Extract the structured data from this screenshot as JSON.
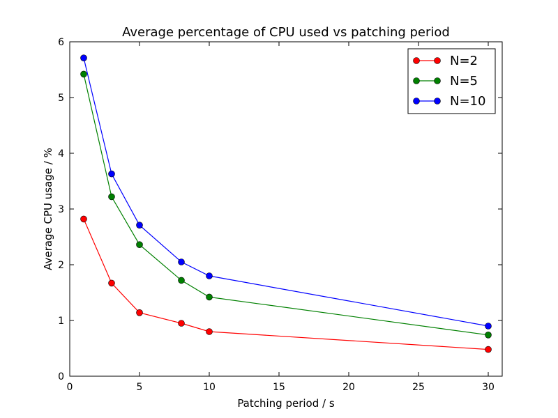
{
  "chart_data": {
    "type": "line",
    "title": "Average percentage of CPU used vs patching period",
    "xlabel": "Patching period / s",
    "ylabel": "Average CPU usage / %",
    "xlim": [
      0,
      31
    ],
    "ylim": [
      0,
      6
    ],
    "x_ticks": [
      0,
      5,
      10,
      15,
      20,
      25,
      30
    ],
    "y_ticks": [
      0,
      1,
      2,
      3,
      4,
      5,
      6
    ],
    "x": [
      1,
      3,
      5,
      8,
      10,
      30
    ],
    "grid": false,
    "legend_position": "top-right",
    "series": [
      {
        "name": "N=2",
        "color": "#ff0000",
        "values": [
          2.82,
          1.67,
          1.14,
          0.95,
          0.8,
          0.48
        ]
      },
      {
        "name": "N=5",
        "color": "#008000",
        "values": [
          5.42,
          3.22,
          2.36,
          1.72,
          1.42,
          0.74
        ]
      },
      {
        "name": "N=10",
        "color": "#0000ff",
        "values": [
          5.71,
          3.63,
          2.71,
          2.05,
          1.8,
          0.9
        ]
      }
    ]
  }
}
